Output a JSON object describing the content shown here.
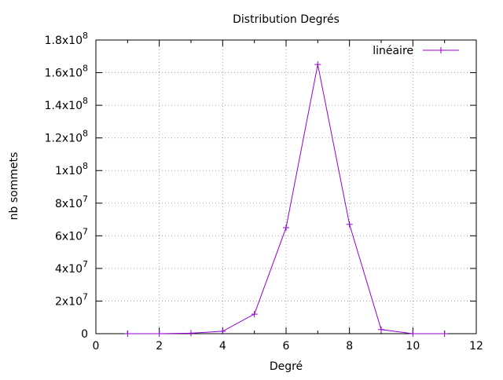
{
  "chart_data": {
    "type": "line",
    "title": "Distribution Degrés",
    "xlabel": "Degré",
    "ylabel": "nb sommets",
    "xlim": [
      0,
      12
    ],
    "ylim": [
      0,
      180000000
    ],
    "x_ticks": [
      "0",
      "2",
      "4",
      "6",
      "8",
      "10",
      "12"
    ],
    "y_ticks": [
      {
        "mantissa": "0",
        "exp": ""
      },
      {
        "mantissa": "2x10",
        "exp": "7"
      },
      {
        "mantissa": "4x10",
        "exp": "7"
      },
      {
        "mantissa": "6x10",
        "exp": "7"
      },
      {
        "mantissa": "8x10",
        "exp": "7"
      },
      {
        "mantissa": "1x10",
        "exp": "8"
      },
      {
        "mantissa": "1.2x10",
        "exp": "8"
      },
      {
        "mantissa": "1.4x10",
        "exp": "8"
      },
      {
        "mantissa": "1.6x10",
        "exp": "8"
      },
      {
        "mantissa": "1.8x10",
        "exp": "8"
      }
    ],
    "grid": true,
    "legend_position": "top-right",
    "series": [
      {
        "name": "linéaire",
        "color": "#9400d3",
        "marker": "plus",
        "x": [
          1,
          2,
          3,
          4,
          5,
          6,
          7,
          8,
          9,
          10,
          11
        ],
        "y": [
          0,
          0,
          300000,
          1500000,
          12000000,
          65000000,
          165000000,
          67000000,
          2500000,
          0,
          0
        ]
      }
    ]
  }
}
